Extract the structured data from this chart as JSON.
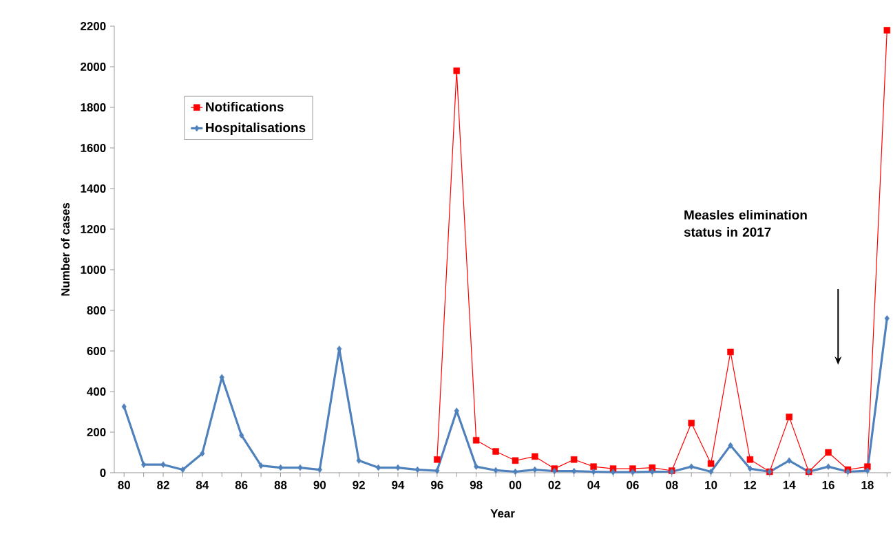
{
  "chart_data": {
    "type": "line",
    "xlabel": "Year",
    "ylabel": "Number of cases",
    "categories": [
      "80",
      null,
      "82",
      null,
      "84",
      null,
      "86",
      null,
      "88",
      null,
      "90",
      null,
      "92",
      null,
      "94",
      null,
      "96",
      null,
      "98",
      null,
      "00",
      null,
      "02",
      null,
      "04",
      null,
      "06",
      null,
      "08",
      null,
      "10",
      null,
      "12",
      null,
      "14",
      null,
      "16",
      null,
      "18",
      null
    ],
    "series": [
      {
        "name": "Notifications",
        "color": "#ff0000",
        "marker": "square",
        "values": [
          null,
          null,
          null,
          null,
          null,
          null,
          null,
          null,
          null,
          null,
          null,
          null,
          null,
          null,
          null,
          null,
          65,
          1980,
          160,
          105,
          60,
          80,
          20,
          65,
          30,
          20,
          20,
          25,
          10,
          245,
          45,
          595,
          65,
          5,
          275,
          5,
          100,
          15,
          30,
          2180
        ]
      },
      {
        "name": "Hospitalisations",
        "color": "#4f81bd",
        "marker": "diamond",
        "values": [
          325,
          40,
          40,
          15,
          95,
          470,
          185,
          35,
          25,
          25,
          15,
          610,
          60,
          25,
          25,
          15,
          10,
          305,
          30,
          12,
          5,
          15,
          8,
          8,
          5,
          3,
          3,
          5,
          5,
          30,
          5,
          135,
          20,
          5,
          60,
          5,
          30,
          5,
          10,
          760
        ]
      }
    ],
    "ylim": [
      0,
      2200
    ],
    "yticks": [
      0,
      200,
      400,
      600,
      800,
      1000,
      1200,
      1400,
      1600,
      1800,
      2000,
      2200
    ],
    "grid": false,
    "legend": "top left",
    "annotations": [
      "Measles elimination status in 2017"
    ]
  }
}
